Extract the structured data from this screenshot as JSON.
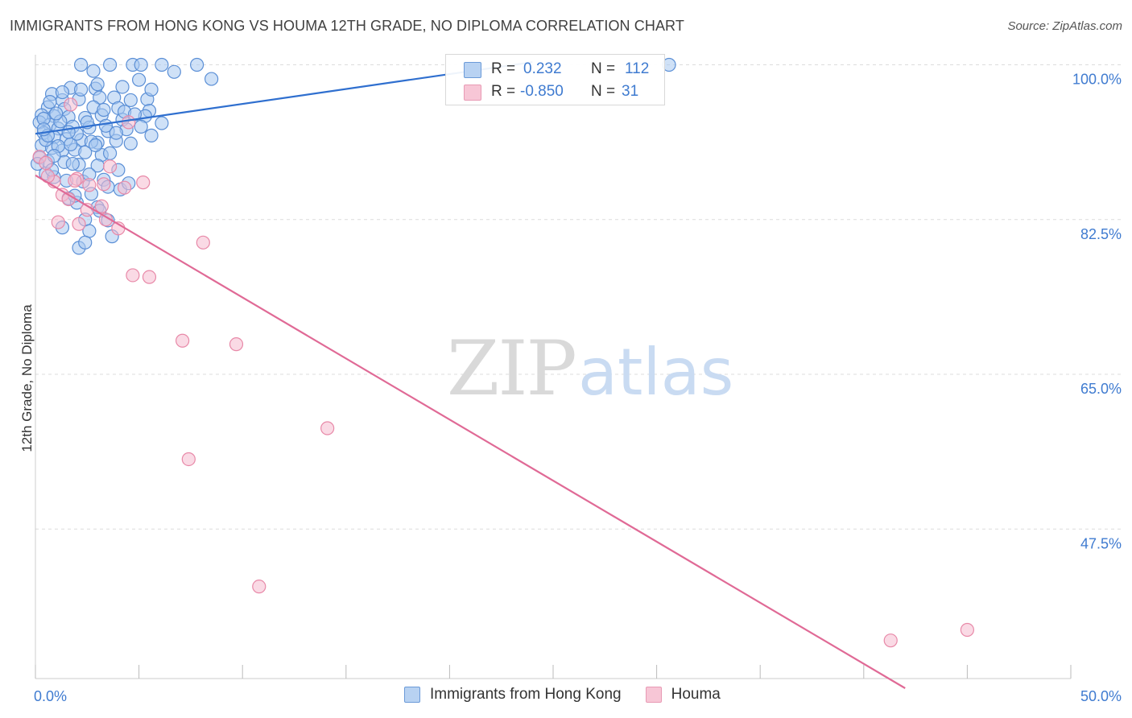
{
  "title": "IMMIGRANTS FROM HONG KONG VS HOUMA 12TH GRADE, NO DIPLOMA CORRELATION CHART",
  "source": "Source: ZipAtlas.com",
  "watermark": {
    "zip": "ZIP",
    "atlas": "atlas"
  },
  "colors": {
    "blue_fill": "#a8c8f0",
    "blue_stroke": "#5b8fd6",
    "blue_line": "#2f6fcf",
    "pink_fill": "#f6bcd0",
    "pink_stroke": "#e889a8",
    "pink_line": "#e06a96",
    "tick_text": "#3f7bd0",
    "grid": "#dcdcdc"
  },
  "stats": {
    "blue": {
      "r_label": "R = ",
      "r_value": " 0.232",
      "n_label": "N = ",
      "n_value": "112"
    },
    "pink": {
      "r_label": "R = ",
      "r_value": "-0.850",
      "n_label": "N = ",
      "n_value": " 31"
    }
  },
  "chart_data": {
    "type": "scatter",
    "xlabel": "",
    "ylabel": "12th Grade, No Diploma",
    "xlim": [
      0,
      50
    ],
    "ylim": [
      29.5,
      101.5
    ],
    "x_tick_labels": [
      {
        "value": 0,
        "label": "0.0%"
      },
      {
        "value": 50,
        "label": "50.0%"
      }
    ],
    "y_tick_labels": [
      {
        "value": 100,
        "label": "100.0%"
      },
      {
        "value": 82.5,
        "label": "82.5%"
      },
      {
        "value": 65,
        "label": "65.0%"
      },
      {
        "value": 47.5,
        "label": "47.5%"
      }
    ],
    "grid": true,
    "legend_position": "bottom",
    "series": [
      {
        "name": "Immigrants from Hong Kong",
        "trend": {
          "x": [
            0,
            24
          ],
          "y": [
            92.2,
            100.3
          ]
        },
        "points": [
          [
            2.2,
            100
          ],
          [
            3.6,
            100
          ],
          [
            4.7,
            100
          ],
          [
            5.1,
            100
          ],
          [
            6.1,
            100
          ],
          [
            7.8,
            100
          ],
          [
            30.6,
            100
          ],
          [
            2.8,
            99.3
          ],
          [
            6.7,
            99.2
          ],
          [
            8.5,
            98.4
          ],
          [
            2.9,
            97.3
          ],
          [
            1.7,
            97.4
          ],
          [
            0.8,
            96.7
          ],
          [
            1.3,
            96.0
          ],
          [
            2.1,
            96.1
          ],
          [
            3.1,
            96.3
          ],
          [
            3.8,
            96.3
          ],
          [
            4.6,
            96.0
          ],
          [
            5.4,
            96.1
          ],
          [
            0.6,
            95.2
          ],
          [
            1.4,
            95.0
          ],
          [
            2.8,
            95.2
          ],
          [
            4.0,
            95.1
          ],
          [
            5.5,
            94.8
          ],
          [
            0.3,
            94.3
          ],
          [
            0.9,
            94.2
          ],
          [
            1.6,
            94.1
          ],
          [
            2.4,
            94.0
          ],
          [
            3.2,
            94.3
          ],
          [
            4.2,
            93.8
          ],
          [
            5.3,
            94.2
          ],
          [
            6.1,
            93.4
          ],
          [
            0.2,
            93.5
          ],
          [
            0.7,
            93.2
          ],
          [
            1.1,
            92.8
          ],
          [
            1.8,
            93.0
          ],
          [
            2.6,
            92.9
          ],
          [
            3.5,
            92.5
          ],
          [
            4.4,
            92.7
          ],
          [
            5.1,
            93.0
          ],
          [
            0.4,
            92.3
          ],
          [
            0.9,
            91.8
          ],
          [
            1.5,
            91.6
          ],
          [
            2.2,
            91.5
          ],
          [
            3.0,
            91.2
          ],
          [
            3.9,
            91.4
          ],
          [
            4.6,
            91.1
          ],
          [
            0.3,
            90.9
          ],
          [
            0.8,
            90.6
          ],
          [
            1.3,
            90.3
          ],
          [
            1.9,
            90.4
          ],
          [
            2.4,
            90.1
          ],
          [
            3.2,
            89.8
          ],
          [
            0.2,
            89.5
          ],
          [
            0.6,
            89.1
          ],
          [
            1.4,
            89.0
          ],
          [
            2.1,
            88.7
          ],
          [
            3.0,
            88.6
          ],
          [
            4.0,
            88.1
          ],
          [
            0.1,
            88.8
          ],
          [
            0.5,
            87.7
          ],
          [
            0.9,
            87.3
          ],
          [
            1.5,
            86.9
          ],
          [
            2.3,
            86.8
          ],
          [
            3.3,
            87.0
          ],
          [
            3.5,
            86.2
          ],
          [
            4.1,
            85.9
          ],
          [
            2.7,
            85.4
          ],
          [
            1.6,
            84.9
          ],
          [
            2.0,
            84.4
          ],
          [
            3.0,
            83.9
          ],
          [
            2.4,
            82.5
          ],
          [
            3.5,
            82.4
          ],
          [
            1.3,
            81.6
          ],
          [
            2.6,
            81.2
          ],
          [
            3.7,
            80.6
          ],
          [
            2.1,
            79.3
          ],
          [
            2.4,
            79.9
          ],
          [
            0.4,
            93.9
          ],
          [
            0.5,
            91.5
          ],
          [
            1.2,
            93.6
          ],
          [
            1.7,
            91.0
          ],
          [
            2.0,
            92.2
          ],
          [
            2.7,
            91.3
          ],
          [
            3.4,
            93.1
          ],
          [
            3.9,
            92.3
          ],
          [
            4.3,
            94.7
          ],
          [
            5.6,
            92.0
          ],
          [
            1.0,
            94.5
          ],
          [
            0.6,
            92.0
          ],
          [
            1.1,
            90.8
          ],
          [
            2.5,
            93.5
          ],
          [
            3.3,
            94.9
          ],
          [
            0.9,
            89.7
          ],
          [
            1.8,
            88.8
          ],
          [
            4.8,
            94.4
          ],
          [
            0.7,
            95.8
          ],
          [
            1.3,
            96.9
          ],
          [
            2.2,
            97.2
          ],
          [
            3.0,
            97.8
          ],
          [
            4.2,
            97.5
          ],
          [
            5.0,
            98.3
          ],
          [
            5.6,
            97.2
          ],
          [
            0.4,
            92.7
          ],
          [
            1.6,
            92.4
          ],
          [
            2.9,
            90.9
          ],
          [
            3.6,
            90.0
          ],
          [
            0.8,
            88.1
          ],
          [
            2.6,
            87.6
          ],
          [
            4.5,
            86.6
          ],
          [
            1.9,
            85.2
          ],
          [
            3.1,
            83.5
          ]
        ]
      },
      {
        "name": "Houma",
        "trend": {
          "x": [
            0,
            42
          ],
          "y": [
            87.5,
            29.5
          ]
        },
        "points": [
          [
            0.2,
            89.6
          ],
          [
            0.5,
            88.9
          ],
          [
            0.9,
            86.8
          ],
          [
            1.3,
            85.3
          ],
          [
            2.0,
            87.1
          ],
          [
            2.6,
            86.4
          ],
          [
            3.3,
            86.5
          ],
          [
            3.6,
            88.5
          ],
          [
            4.3,
            86.1
          ],
          [
            5.2,
            86.7
          ],
          [
            1.6,
            84.8
          ],
          [
            2.5,
            83.6
          ],
          [
            3.2,
            84.0
          ],
          [
            1.1,
            82.2
          ],
          [
            2.1,
            82.0
          ],
          [
            3.4,
            82.5
          ],
          [
            4.0,
            81.5
          ],
          [
            4.5,
            93.5
          ],
          [
            1.7,
            95.5
          ],
          [
            1.9,
            86.9
          ],
          [
            0.6,
            87.4
          ],
          [
            8.1,
            79.9
          ],
          [
            4.7,
            76.2
          ],
          [
            5.5,
            76.0
          ],
          [
            7.1,
            68.8
          ],
          [
            9.7,
            68.4
          ],
          [
            14.1,
            58.9
          ],
          [
            7.4,
            55.4
          ],
          [
            10.8,
            41.0
          ],
          [
            41.3,
            34.9
          ],
          [
            45.0,
            36.1
          ]
        ]
      }
    ]
  }
}
